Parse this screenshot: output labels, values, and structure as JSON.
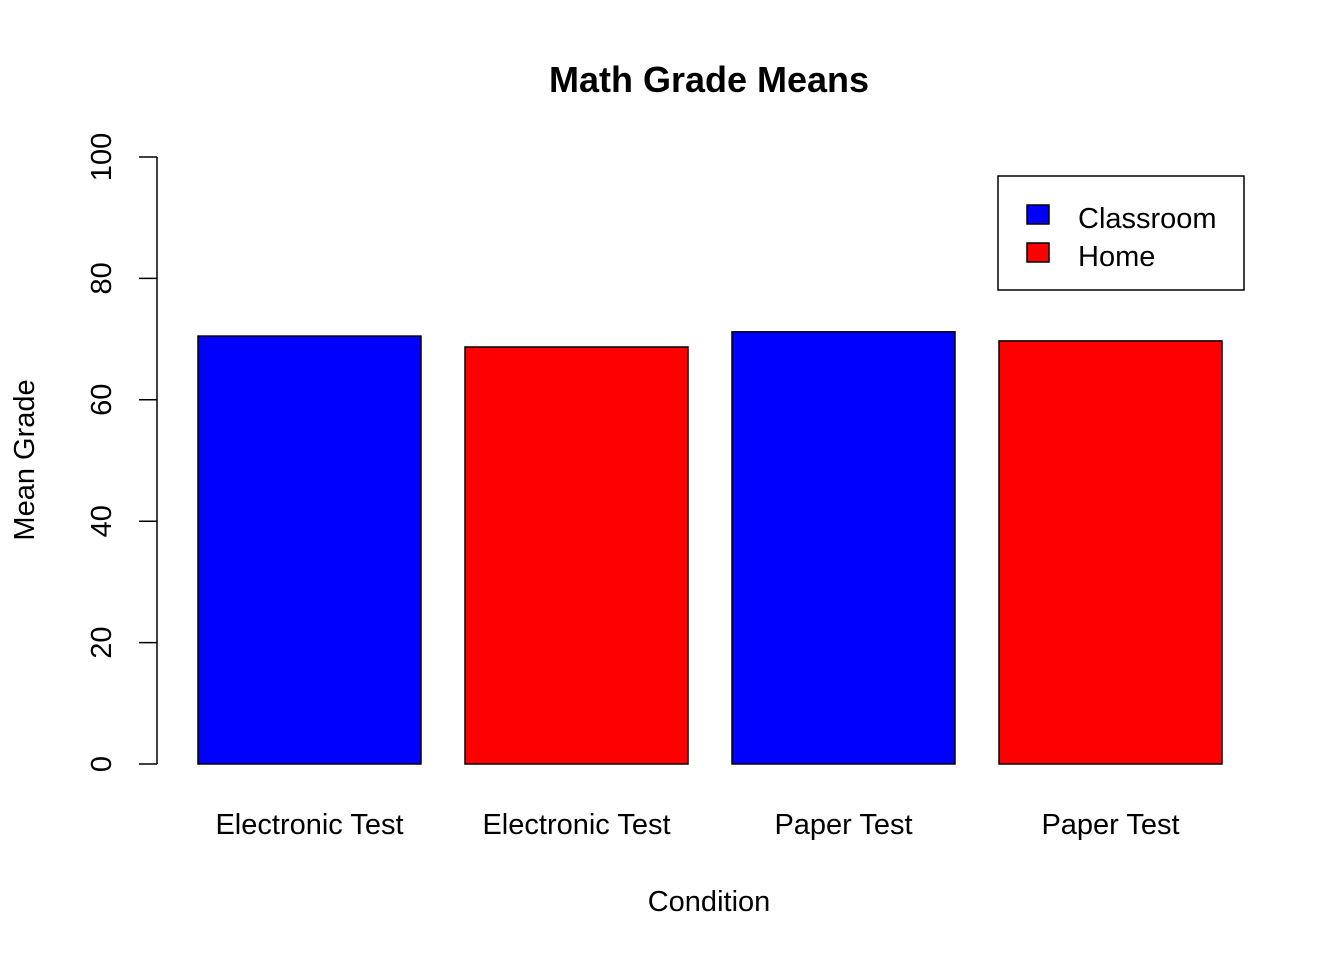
{
  "chart_data": {
    "type": "bar",
    "title": "Math Grade Means",
    "xlabel": "Condition",
    "ylabel": "Mean Grade",
    "ylim": [
      0,
      100
    ],
    "yticks": [
      "0",
      "20",
      "40",
      "60",
      "80",
      "100"
    ],
    "grid": false,
    "legend_position": "top-right",
    "categories": [
      "Electronic Test",
      "Electronic Test",
      "Paper Test",
      "Paper Test"
    ],
    "values": [
      70.5,
      68.7,
      71.2,
      69.7
    ],
    "bar_groups": [
      "Classroom",
      "Home",
      "Classroom",
      "Home"
    ],
    "legend": [
      {
        "name": "Classroom",
        "color": "#0000FF"
      },
      {
        "name": "Home",
        "color": "#FF0000"
      }
    ]
  }
}
